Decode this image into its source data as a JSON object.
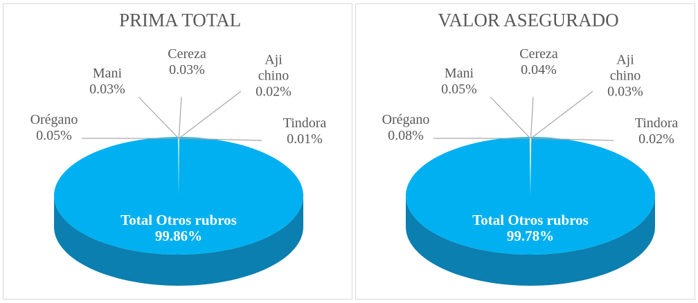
{
  "chart_data": [
    {
      "type": "pie",
      "title": "PRIMA TOTAL",
      "categories": [
        "Orégano",
        "Mani",
        "Cereza",
        "Aji chino",
        "Tindora",
        "Total Otros rubros"
      ],
      "values": [
        0.05,
        0.03,
        0.03,
        0.02,
        0.01,
        99.86
      ],
      "value_labels": [
        "0.05%",
        "0.03%",
        "0.03%",
        "0.02%",
        "0.01%",
        "99.86%"
      ],
      "colors": [
        "#f08a4b",
        "#f9c98c",
        "#fff3a6",
        "#dcecf8",
        "#c6e3f6",
        "#00b0f0"
      ]
    },
    {
      "type": "pie",
      "title": "VALOR ASEGURADO",
      "categories": [
        "Orégano",
        "Mani",
        "Cereza",
        "Aji chino",
        "Tindora",
        "Total Otros rubros"
      ],
      "values": [
        0.08,
        0.05,
        0.04,
        0.03,
        0.02,
        99.78
      ],
      "value_labels": [
        "0.08%",
        "0.05%",
        "0.04%",
        "0.03%",
        "0.02%",
        "99.78%"
      ],
      "colors": [
        "#f08a4b",
        "#f9c98c",
        "#fff3a6",
        "#dcecf8",
        "#c6e3f6",
        "#00b0f0"
      ]
    }
  ]
}
